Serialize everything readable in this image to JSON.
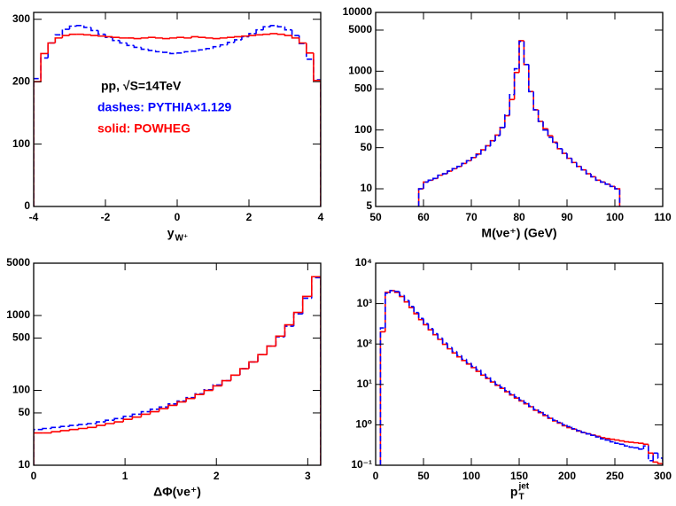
{
  "chart_data": [
    {
      "type": "histogram",
      "bins": [
        -4,
        -3.8,
        -3.6,
        -3.4,
        -3.2,
        -3,
        -2.8,
        -2.6,
        -2.4,
        -2.2,
        -2,
        -1.8,
        -1.6,
        -1.4,
        -1.2,
        -1,
        -0.8,
        -0.6,
        -0.4,
        -0.2,
        0,
        0.2,
        0.4,
        0.6,
        0.8,
        1,
        1.2,
        1.4,
        1.6,
        1.8,
        2,
        2.2,
        2.4,
        2.6,
        2.8,
        3,
        3.2,
        3.4,
        3.6,
        3.8,
        4
      ],
      "series": [
        {
          "name": "dashes: PYTHIA×1.129",
          "color": "#0000ff",
          "dash": true,
          "values": [
            205,
            238,
            262,
            275,
            284,
            289,
            290,
            287,
            282,
            276,
            271,
            266,
            262,
            258,
            255,
            252,
            250,
            248,
            247,
            245,
            246,
            248,
            249,
            251,
            253,
            256,
            259,
            263,
            267,
            272,
            277,
            283,
            288,
            290,
            288,
            283,
            274,
            261,
            236,
            203
          ]
        },
        {
          "name": "solid: POWHEG",
          "color": "#ff0000",
          "dash": false,
          "values": [
            200,
            245,
            262,
            270,
            274,
            276,
            276,
            275,
            274,
            273,
            272,
            271,
            270,
            270,
            269,
            270,
            271,
            270,
            269,
            270,
            271,
            270,
            272,
            271,
            270,
            269,
            270,
            271,
            272,
            273,
            274,
            275,
            276,
            277,
            276,
            274,
            270,
            262,
            246,
            202
          ]
        }
      ],
      "xlim": [
        -4,
        4
      ],
      "xticks": [
        -4,
        -2,
        0,
        2,
        4
      ],
      "ylim": [
        0,
        311
      ],
      "yticks": [
        0,
        100,
        200,
        300
      ],
      "log_y": false,
      "x_label": "y",
      "x_label_sub": "W⁺",
      "annotation": "pp, √S=14TeV"
    },
    {
      "type": "histogram",
      "bins": [
        59,
        60,
        61,
        62,
        63,
        64,
        65,
        66,
        67,
        68,
        69,
        70,
        71,
        72,
        73,
        74,
        75,
        76,
        77,
        78,
        79,
        80,
        81,
        82,
        83,
        84,
        85,
        86,
        87,
        88,
        89,
        90,
        91,
        92,
        93,
        94,
        95,
        96,
        97,
        98,
        99,
        100,
        101
      ],
      "series": [
        {
          "color": "#ff0000",
          "dash": false,
          "values": [
            10,
            13,
            14,
            15,
            17,
            18,
            20,
            22,
            24,
            27,
            30,
            34,
            39,
            46,
            54,
            66,
            82,
            110,
            175,
            330,
            950,
            3300,
            1300,
            450,
            220,
            140,
            105,
            80,
            62,
            48,
            40,
            33,
            28,
            24,
            21,
            18,
            16,
            14,
            13,
            12,
            11,
            10
          ]
        },
        {
          "color": "#0000ff",
          "dash": true,
          "values": [
            10,
            13,
            14,
            15,
            17,
            18,
            20,
            22,
            24,
            27,
            30,
            34,
            38,
            45,
            53,
            65,
            80,
            110,
            180,
            400,
            1100,
            3200,
            1300,
            450,
            220,
            140,
            100,
            75,
            60,
            48,
            40,
            33,
            28,
            24,
            21,
            18,
            16,
            14,
            13,
            12,
            11,
            10
          ]
        }
      ],
      "xlim": [
        50,
        110
      ],
      "xticks": [
        50,
        60,
        70,
        80,
        90,
        100,
        110
      ],
      "ylim": [
        5,
        10000
      ],
      "yticks": [
        5,
        10,
        50,
        100,
        500,
        1000,
        5000,
        10000
      ],
      "log_y": true,
      "x_label": "M(νe⁺) (GeV)"
    },
    {
      "type": "histogram",
      "bins": [
        0,
        0.098,
        0.196,
        0.295,
        0.393,
        0.491,
        0.589,
        0.687,
        0.785,
        0.884,
        0.982,
        1.08,
        1.178,
        1.276,
        1.374,
        1.473,
        1.571,
        1.669,
        1.767,
        1.865,
        1.963,
        2.062,
        2.16,
        2.258,
        2.356,
        2.454,
        2.553,
        2.651,
        2.749,
        2.847,
        2.945,
        3.043,
        3.142
      ],
      "series": [
        {
          "color": "#0000ff",
          "dash": true,
          "values": [
            30,
            31,
            32,
            33,
            34,
            35,
            36,
            38,
            40,
            42,
            45,
            48,
            52,
            56,
            60,
            66,
            72,
            80,
            90,
            102,
            118,
            135,
            160,
            195,
            240,
            300,
            390,
            520,
            720,
            1050,
            1700,
            3200
          ]
        },
        {
          "color": "#ff0000",
          "dash": false,
          "values": [
            27,
            27,
            28,
            29,
            30,
            31,
            32,
            34,
            36,
            38,
            41,
            44,
            48,
            52,
            57,
            63,
            70,
            78,
            88,
            100,
            115,
            135,
            160,
            195,
            240,
            300,
            390,
            530,
            750,
            1100,
            1800,
            3300
          ]
        }
      ],
      "xlim": [
        0,
        3.142
      ],
      "xticks": [
        0,
        1,
        2,
        3
      ],
      "ylim": [
        10,
        5000
      ],
      "yticks": [
        10,
        50,
        100,
        500,
        1000,
        5000
      ],
      "log_y": true,
      "x_label": "ΔΦ(νe⁺)"
    },
    {
      "type": "histogram",
      "bins": [
        5,
        10,
        15,
        20,
        25,
        30,
        35,
        40,
        45,
        50,
        55,
        60,
        65,
        70,
        75,
        80,
        85,
        90,
        95,
        100,
        105,
        110,
        115,
        120,
        125,
        130,
        135,
        140,
        145,
        150,
        155,
        160,
        165,
        170,
        175,
        180,
        185,
        190,
        195,
        200,
        205,
        210,
        215,
        220,
        225,
        230,
        235,
        240,
        245,
        250,
        255,
        260,
        265,
        270,
        275,
        280,
        285,
        290,
        295,
        300
      ],
      "series": [
        {
          "color": "#ff0000",
          "dash": false,
          "values": [
            200,
            1900,
            2100,
            1900,
            1500,
            1100,
            800,
            560,
            400,
            300,
            225,
            170,
            130,
            98,
            76,
            60,
            48,
            39,
            32,
            26,
            21,
            17,
            14,
            11.5,
            9.5,
            8,
            6.6,
            5.5,
            4.6,
            3.9,
            3.3,
            2.8,
            2.3,
            2.0,
            1.7,
            1.45,
            1.25,
            1.1,
            0.95,
            0.85,
            0.78,
            0.7,
            0.64,
            0.6,
            0.56,
            0.52,
            0.48,
            0.46,
            0.44,
            0.42,
            0.4,
            0.38,
            0.37,
            0.36,
            0.35,
            0.33,
            0.2,
            0.12,
            0.11
          ]
        },
        {
          "color": "#0000ff",
          "dash": true,
          "values": [
            250,
            1800,
            2100,
            2000,
            1600,
            1200,
            850,
            600,
            430,
            320,
            240,
            180,
            140,
            105,
            82,
            65,
            52,
            42,
            34,
            28,
            23,
            18,
            15,
            12,
            10,
            8.5,
            7,
            5.8,
            4.9,
            4.1,
            3.5,
            2.9,
            2.4,
            2.1,
            1.8,
            1.5,
            1.3,
            1.15,
            1.0,
            0.9,
            0.8,
            0.72,
            0.65,
            0.6,
            0.55,
            0.5,
            0.45,
            0.42,
            0.38,
            0.35,
            0.33,
            0.3,
            0.28,
            0.27,
            0.25,
            0.3,
            0.13,
            0.2,
            0.15
          ]
        }
      ],
      "xlim": [
        0,
        300
      ],
      "xticks": [
        0,
        50,
        100,
        150,
        200,
        250,
        300
      ],
      "ylim": [
        0.1,
        10000
      ],
      "yticks": [
        {
          "value": 0.1,
          "label": "10⁻¹"
        },
        {
          "value": 1,
          "label": "10⁰"
        },
        {
          "value": 10,
          "label": "10¹"
        },
        {
          "value": 100,
          "label": "10²"
        },
        {
          "value": 1000,
          "label": "10³"
        },
        {
          "value": 10000,
          "label": "10⁴"
        }
      ],
      "log_y": true,
      "x_label": "p",
      "x_label_sub": "T",
      "x_label_sup": "jet"
    }
  ]
}
